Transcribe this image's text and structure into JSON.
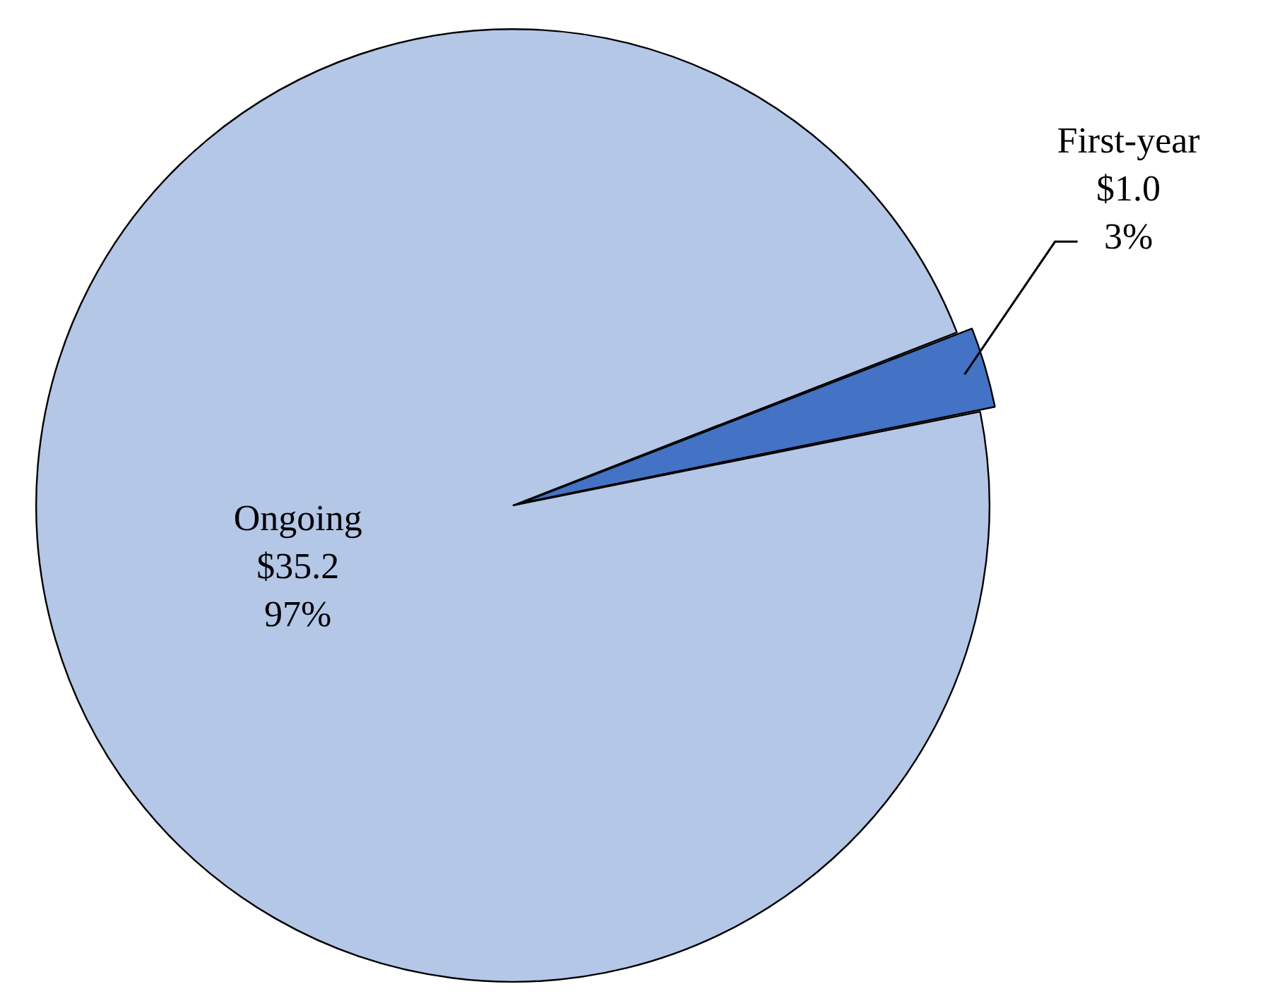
{
  "chart_data": {
    "type": "pie",
    "categories": [
      "First-year",
      "Ongoing"
    ],
    "values": [
      1.0,
      35.2
    ],
    "colors": [
      "#4472c4",
      "#b4c7e7"
    ],
    "value_labels": [
      "$1.0\n3%",
      "$35.2\n97%"
    ],
    "legend": false
  }
}
